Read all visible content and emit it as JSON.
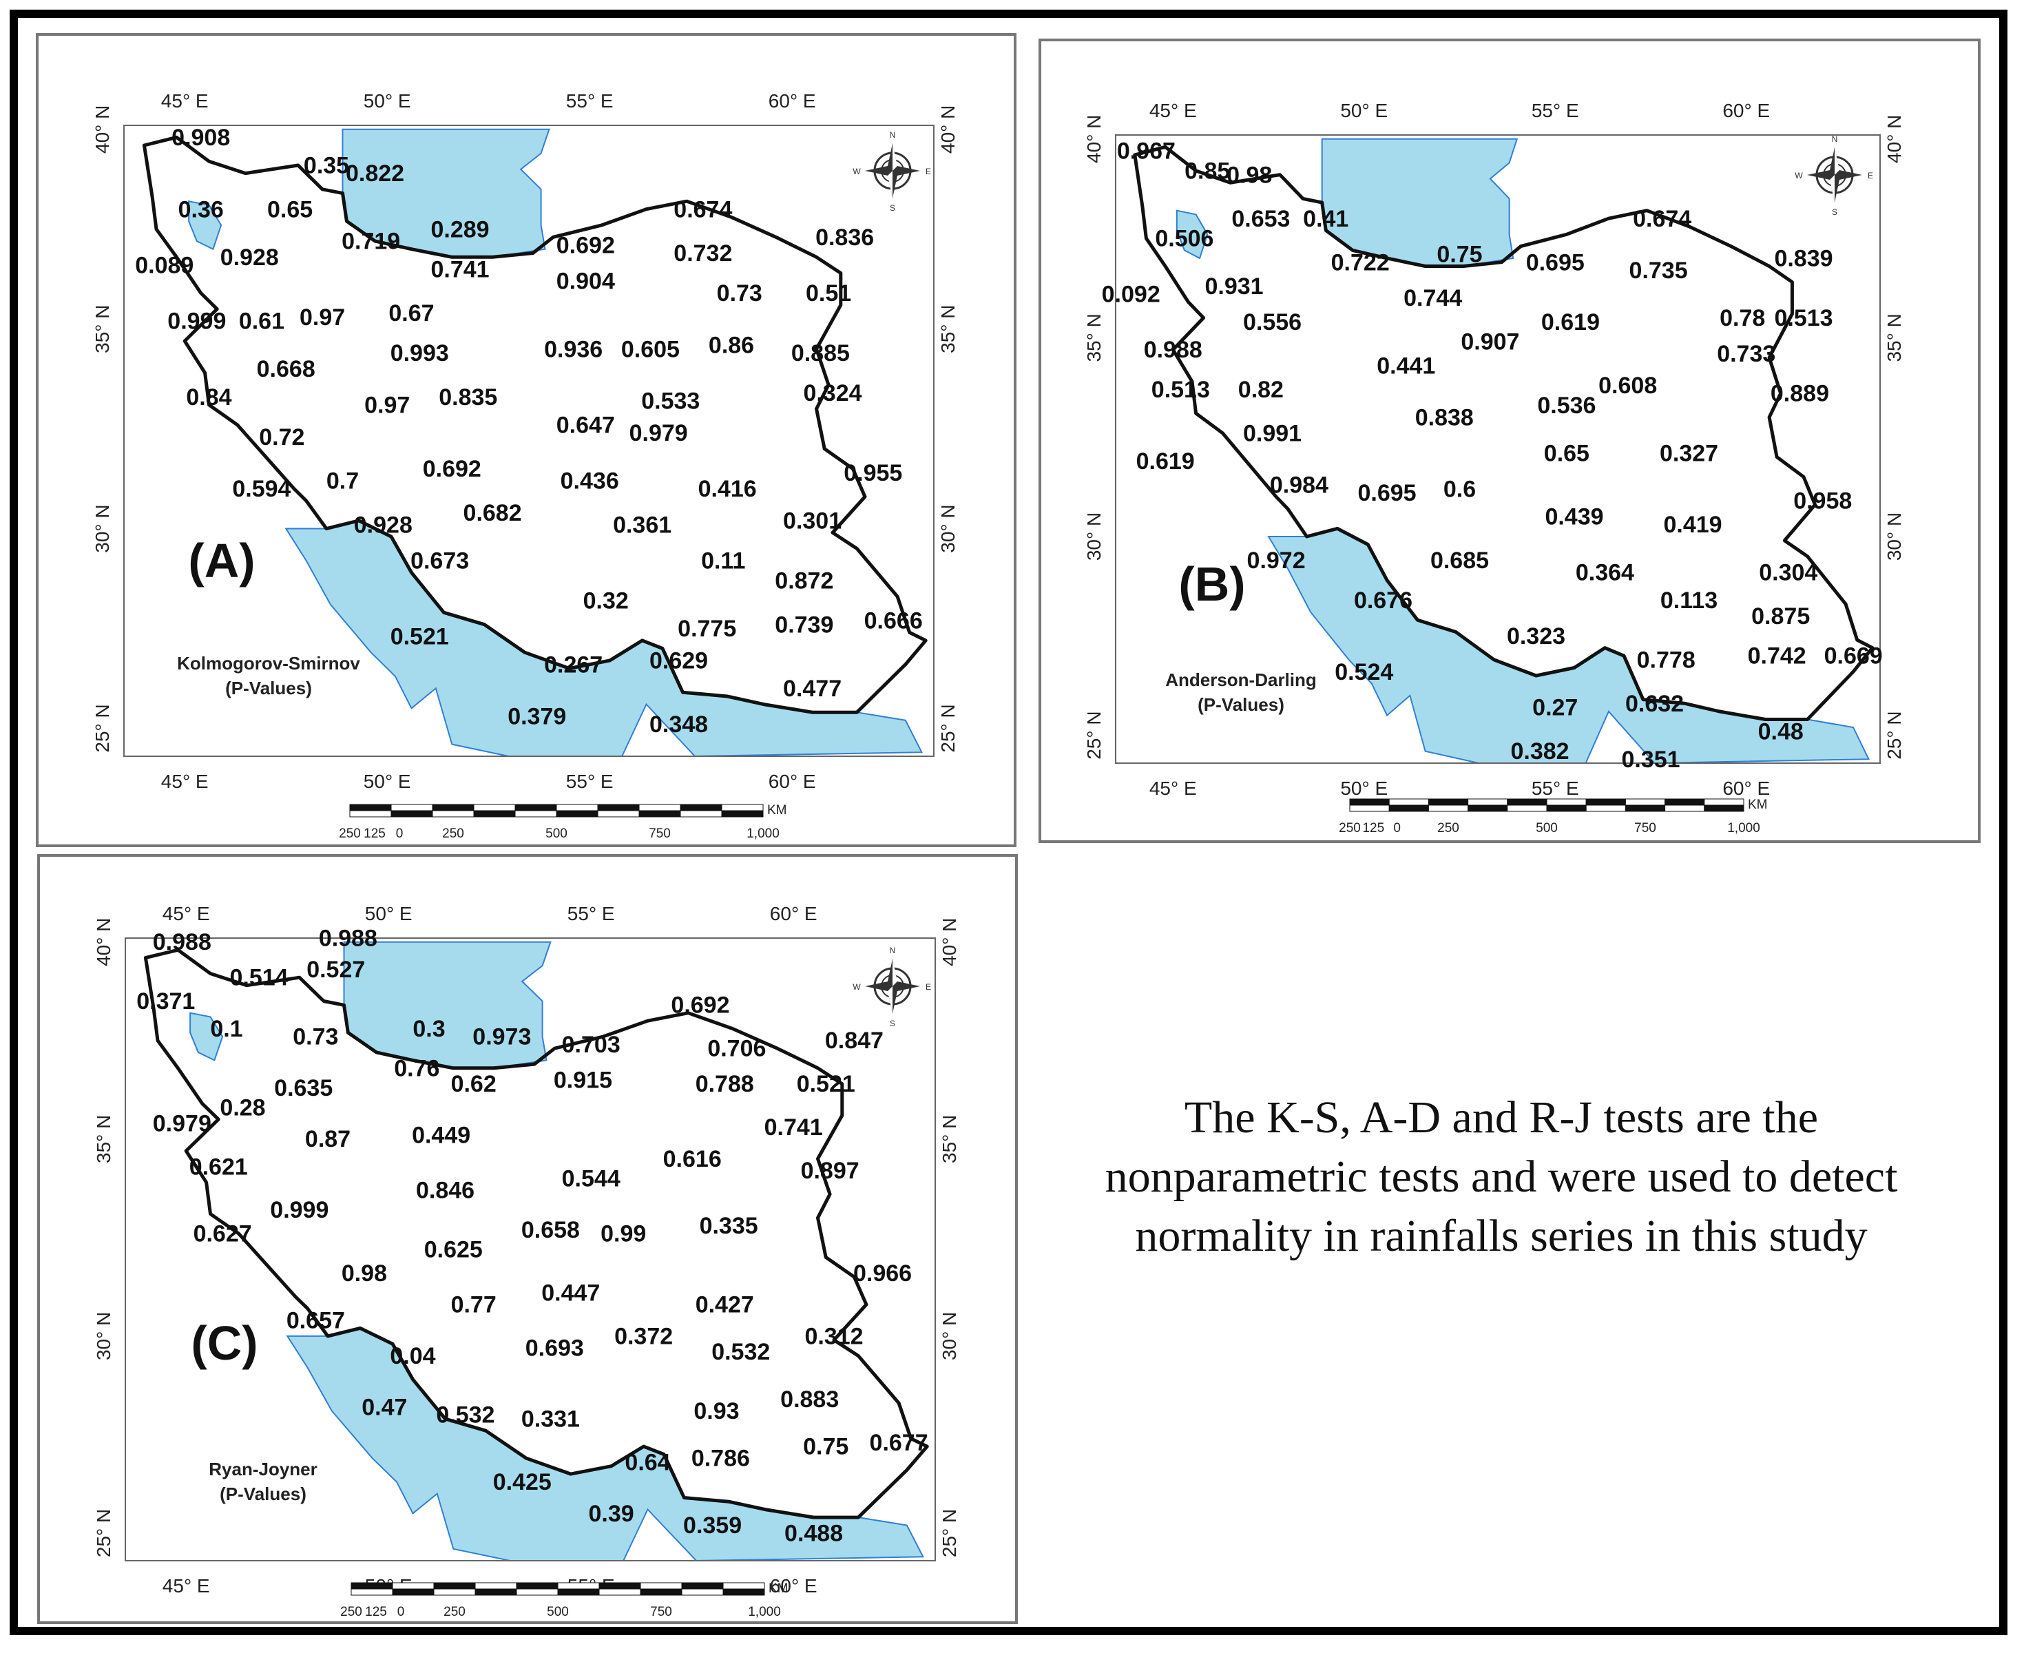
{
  "panels": [
    {
      "id": "A",
      "label": "(A)",
      "test_name": "Kolmogorov-Smirnov",
      "subtitle": "(P-Values)",
      "values": [
        {
          "v": "0.908",
          "lon": 45.4,
          "lat": 39.6
        },
        {
          "v": "0.35",
          "lon": 48.5,
          "lat": 38.9
        },
        {
          "v": "0.822",
          "lon": 49.7,
          "lat": 38.7
        },
        {
          "v": "0.36",
          "lon": 45.4,
          "lat": 37.8
        },
        {
          "v": "0.65",
          "lon": 47.6,
          "lat": 37.8
        },
        {
          "v": "0.289",
          "lon": 51.8,
          "lat": 37.3
        },
        {
          "v": "0.674",
          "lon": 57.8,
          "lat": 37.8
        },
        {
          "v": "0.719",
          "lon": 49.6,
          "lat": 37.0
        },
        {
          "v": "0.692",
          "lon": 54.9,
          "lat": 36.9
        },
        {
          "v": "0.732",
          "lon": 57.8,
          "lat": 36.7
        },
        {
          "v": "0.836",
          "lon": 61.3,
          "lat": 37.1
        },
        {
          "v": "0.089",
          "lon": 44.5,
          "lat": 36.4
        },
        {
          "v": "0.928",
          "lon": 46.6,
          "lat": 36.6
        },
        {
          "v": "0.741",
          "lon": 51.8,
          "lat": 36.3
        },
        {
          "v": "0.904",
          "lon": 54.9,
          "lat": 36.0
        },
        {
          "v": "0.73",
          "lon": 58.7,
          "lat": 35.7
        },
        {
          "v": "0.51",
          "lon": 60.9,
          "lat": 35.7
        },
        {
          "v": "0.999",
          "lon": 45.3,
          "lat": 35.0
        },
        {
          "v": "0.61",
          "lon": 46.9,
          "lat": 35.0
        },
        {
          "v": "0.97",
          "lon": 48.4,
          "lat": 35.1
        },
        {
          "v": "0.67",
          "lon": 50.6,
          "lat": 35.2
        },
        {
          "v": "0.936",
          "lon": 54.6,
          "lat": 34.3
        },
        {
          "v": "0.605",
          "lon": 56.5,
          "lat": 34.3
        },
        {
          "v": "0.86",
          "lon": 58.5,
          "lat": 34.4
        },
        {
          "v": "0.885",
          "lon": 60.7,
          "lat": 34.2
        },
        {
          "v": "0.668",
          "lon": 47.5,
          "lat": 33.8
        },
        {
          "v": "0.993",
          "lon": 50.8,
          "lat": 34.2
        },
        {
          "v": "0.84",
          "lon": 45.6,
          "lat": 33.1
        },
        {
          "v": "0.97",
          "lon": 50.0,
          "lat": 32.9
        },
        {
          "v": "0.835",
          "lon": 52.0,
          "lat": 33.1
        },
        {
          "v": "0.533",
          "lon": 57.0,
          "lat": 33.0
        },
        {
          "v": "0.324",
          "lon": 61.0,
          "lat": 33.2
        },
        {
          "v": "0.72",
          "lon": 47.4,
          "lat": 32.1
        },
        {
          "v": "0.647",
          "lon": 54.9,
          "lat": 32.4
        },
        {
          "v": "0.979",
          "lon": 56.7,
          "lat": 32.2
        },
        {
          "v": "0.955",
          "lon": 62.0,
          "lat": 31.2
        },
        {
          "v": "0.594",
          "lon": 46.9,
          "lat": 30.8
        },
        {
          "v": "0.7",
          "lon": 48.9,
          "lat": 31.0
        },
        {
          "v": "0.692",
          "lon": 51.6,
          "lat": 31.3
        },
        {
          "v": "0.436",
          "lon": 55.0,
          "lat": 31.0
        },
        {
          "v": "0.416",
          "lon": 58.4,
          "lat": 30.8
        },
        {
          "v": "0.928",
          "lon": 49.9,
          "lat": 29.9
        },
        {
          "v": "0.682",
          "lon": 52.6,
          "lat": 30.2
        },
        {
          "v": "0.361",
          "lon": 56.3,
          "lat": 29.9
        },
        {
          "v": "0.301",
          "lon": 60.5,
          "lat": 30.0
        },
        {
          "v": "0.673",
          "lon": 51.3,
          "lat": 29.0
        },
        {
          "v": "0.11",
          "lon": 58.3,
          "lat": 29.0
        },
        {
          "v": "0.872",
          "lon": 60.3,
          "lat": 28.5
        },
        {
          "v": "0.32",
          "lon": 55.4,
          "lat": 28.0
        },
        {
          "v": "0.775",
          "lon": 57.9,
          "lat": 27.3
        },
        {
          "v": "0.739",
          "lon": 60.3,
          "lat": 27.4
        },
        {
          "v": "0.666",
          "lon": 62.5,
          "lat": 27.5
        },
        {
          "v": "0.521",
          "lon": 50.8,
          "lat": 27.1
        },
        {
          "v": "0.267",
          "lon": 54.6,
          "lat": 26.4
        },
        {
          "v": "0.629",
          "lon": 57.2,
          "lat": 26.5
        },
        {
          "v": "0.477",
          "lon": 60.5,
          "lat": 25.8
        },
        {
          "v": "0.379",
          "lon": 53.7,
          "lat": 25.1
        },
        {
          "v": "0.348",
          "lon": 57.2,
          "lat": 24.9
        }
      ]
    },
    {
      "id": "B",
      "label": "(B)",
      "test_name": "Anderson-Darling",
      "subtitle": "(P-Values)",
      "values": [
        {
          "v": "0.967",
          "lon": 44.3,
          "lat": 39.5
        },
        {
          "v": "0.85",
          "lon": 45.9,
          "lat": 39.0
        },
        {
          "v": "0.98",
          "lon": 47.0,
          "lat": 38.9
        },
        {
          "v": "0.506",
          "lon": 45.3,
          "lat": 37.3
        },
        {
          "v": "0.653",
          "lon": 47.3,
          "lat": 37.8
        },
        {
          "v": "0.41",
          "lon": 49.0,
          "lat": 37.8
        },
        {
          "v": "0.75",
          "lon": 52.5,
          "lat": 36.9
        },
        {
          "v": "0.674",
          "lon": 57.8,
          "lat": 37.8
        },
        {
          "v": "0.722",
          "lon": 49.9,
          "lat": 36.7
        },
        {
          "v": "0.695",
          "lon": 55.0,
          "lat": 36.7
        },
        {
          "v": "0.735",
          "lon": 57.7,
          "lat": 36.5
        },
        {
          "v": "0.839",
          "lon": 61.5,
          "lat": 36.8
        },
        {
          "v": "0.092",
          "lon": 43.9,
          "lat": 35.9
        },
        {
          "v": "0.931",
          "lon": 46.6,
          "lat": 36.1
        },
        {
          "v": "0.744",
          "lon": 51.8,
          "lat": 35.8
        },
        {
          "v": "0.619",
          "lon": 55.4,
          "lat": 35.2
        },
        {
          "v": "0.78",
          "lon": 59.9,
          "lat": 35.3
        },
        {
          "v": "0.513",
          "lon": 61.5,
          "lat": 35.3
        },
        {
          "v": "0.556",
          "lon": 47.6,
          "lat": 35.2
        },
        {
          "v": "0.907",
          "lon": 53.3,
          "lat": 34.7
        },
        {
          "v": "0.733",
          "lon": 60.0,
          "lat": 34.4
        },
        {
          "v": "0.988",
          "lon": 45.0,
          "lat": 34.5
        },
        {
          "v": "0.441",
          "lon": 51.1,
          "lat": 34.1
        },
        {
          "v": "0.608",
          "lon": 56.9,
          "lat": 33.6
        },
        {
          "v": "0.889",
          "lon": 61.4,
          "lat": 33.4
        },
        {
          "v": "0.513",
          "lon": 45.2,
          "lat": 33.5
        },
        {
          "v": "0.82",
          "lon": 47.3,
          "lat": 33.5
        },
        {
          "v": "0.536",
          "lon": 55.3,
          "lat": 33.1
        },
        {
          "v": "0.838",
          "lon": 52.1,
          "lat": 32.8
        },
        {
          "v": "0.991",
          "lon": 47.6,
          "lat": 32.4
        },
        {
          "v": "0.65",
          "lon": 55.3,
          "lat": 31.9
        },
        {
          "v": "0.327",
          "lon": 58.5,
          "lat": 31.9
        },
        {
          "v": "0.619",
          "lon": 44.8,
          "lat": 31.7
        },
        {
          "v": "0.984",
          "lon": 48.3,
          "lat": 31.1
        },
        {
          "v": "0.695",
          "lon": 50.6,
          "lat": 30.9
        },
        {
          "v": "0.6",
          "lon": 52.5,
          "lat": 31.0
        },
        {
          "v": "0.958",
          "lon": 62.0,
          "lat": 30.7
        },
        {
          "v": "0.439",
          "lon": 55.5,
          "lat": 30.3
        },
        {
          "v": "0.419",
          "lon": 58.6,
          "lat": 30.1
        },
        {
          "v": "0.972",
          "lon": 47.7,
          "lat": 29.2
        },
        {
          "v": "0.685",
          "lon": 52.5,
          "lat": 29.2
        },
        {
          "v": "0.364",
          "lon": 56.3,
          "lat": 28.9
        },
        {
          "v": "0.304",
          "lon": 61.1,
          "lat": 28.9
        },
        {
          "v": "0.676",
          "lon": 50.5,
          "lat": 28.2
        },
        {
          "v": "0.113",
          "lon": 58.5,
          "lat": 28.2
        },
        {
          "v": "0.875",
          "lon": 60.9,
          "lat": 27.8
        },
        {
          "v": "0.323",
          "lon": 54.5,
          "lat": 27.3
        },
        {
          "v": "0.778",
          "lon": 57.9,
          "lat": 26.7
        },
        {
          "v": "0.742",
          "lon": 60.8,
          "lat": 26.8
        },
        {
          "v": "0.669",
          "lon": 62.8,
          "lat": 26.8
        },
        {
          "v": "0.524",
          "lon": 50.0,
          "lat": 26.4
        },
        {
          "v": "0.27",
          "lon": 55.0,
          "lat": 25.5
        },
        {
          "v": "0.632",
          "lon": 57.6,
          "lat": 25.6
        },
        {
          "v": "0.48",
          "lon": 60.9,
          "lat": 24.9
        },
        {
          "v": "0.382",
          "lon": 54.6,
          "lat": 24.4
        },
        {
          "v": "0.351",
          "lon": 57.5,
          "lat": 24.2
        }
      ]
    },
    {
      "id": "C",
      "label": "(C)",
      "test_name": "Ryan-Joyner",
      "subtitle": "(P-Values)",
      "values": [
        {
          "v": "0.988",
          "lon": 44.9,
          "lat": 39.8
        },
        {
          "v": "0.988",
          "lon": 49.0,
          "lat": 39.9
        },
        {
          "v": "0.514",
          "lon": 46.8,
          "lat": 38.9
        },
        {
          "v": "0.527",
          "lon": 48.7,
          "lat": 39.1
        },
        {
          "v": "0.371",
          "lon": 44.5,
          "lat": 38.3
        },
        {
          "v": "0.1",
          "lon": 46.0,
          "lat": 37.6
        },
        {
          "v": "0.73",
          "lon": 48.2,
          "lat": 37.4
        },
        {
          "v": "0.3",
          "lon": 51.0,
          "lat": 37.6
        },
        {
          "v": "0.973",
          "lon": 52.8,
          "lat": 37.4
        },
        {
          "v": "0.703",
          "lon": 55.0,
          "lat": 37.2
        },
        {
          "v": "0.692",
          "lon": 57.7,
          "lat": 38.2
        },
        {
          "v": "0.706",
          "lon": 58.6,
          "lat": 37.1
        },
        {
          "v": "0.847",
          "lon": 61.5,
          "lat": 37.3
        },
        {
          "v": "0.635",
          "lon": 47.9,
          "lat": 36.1
        },
        {
          "v": "0.76",
          "lon": 50.7,
          "lat": 36.6
        },
        {
          "v": "0.62",
          "lon": 52.1,
          "lat": 36.2
        },
        {
          "v": "0.915",
          "lon": 54.8,
          "lat": 36.3
        },
        {
          "v": "0.788",
          "lon": 58.3,
          "lat": 36.2
        },
        {
          "v": "0.521",
          "lon": 60.8,
          "lat": 36.2
        },
        {
          "v": "0.28",
          "lon": 46.4,
          "lat": 35.6
        },
        {
          "v": "0.979",
          "lon": 44.9,
          "lat": 35.2
        },
        {
          "v": "0.741",
          "lon": 60.0,
          "lat": 35.1
        },
        {
          "v": "0.87",
          "lon": 48.5,
          "lat": 34.8
        },
        {
          "v": "0.449",
          "lon": 51.3,
          "lat": 34.9
        },
        {
          "v": "0.616",
          "lon": 57.5,
          "lat": 34.3
        },
        {
          "v": "0.897",
          "lon": 60.9,
          "lat": 34.0
        },
        {
          "v": "0.621",
          "lon": 45.8,
          "lat": 34.1
        },
        {
          "v": "0.544",
          "lon": 55.0,
          "lat": 33.8
        },
        {
          "v": "0.846",
          "lon": 51.4,
          "lat": 33.5
        },
        {
          "v": "0.999",
          "lon": 47.8,
          "lat": 33.0
        },
        {
          "v": "0.658",
          "lon": 54.0,
          "lat": 32.5
        },
        {
          "v": "0.99",
          "lon": 55.8,
          "lat": 32.4
        },
        {
          "v": "0.335",
          "lon": 58.4,
          "lat": 32.6
        },
        {
          "v": "0.627",
          "lon": 45.9,
          "lat": 32.4
        },
        {
          "v": "0.625",
          "lon": 51.6,
          "lat": 32.0
        },
        {
          "v": "0.966",
          "lon": 62.2,
          "lat": 31.4
        },
        {
          "v": "0.98",
          "lon": 49.4,
          "lat": 31.4
        },
        {
          "v": "0.77",
          "lon": 52.1,
          "lat": 30.6
        },
        {
          "v": "0.447",
          "lon": 54.5,
          "lat": 30.9
        },
        {
          "v": "0.427",
          "lon": 58.3,
          "lat": 30.6
        },
        {
          "v": "0.657",
          "lon": 48.2,
          "lat": 30.2
        },
        {
          "v": "0.312",
          "lon": 61.0,
          "lat": 29.8
        },
        {
          "v": "0.04",
          "lon": 50.6,
          "lat": 29.3
        },
        {
          "v": "0.693",
          "lon": 54.1,
          "lat": 29.5
        },
        {
          "v": "0.372",
          "lon": 56.3,
          "lat": 29.8
        },
        {
          "v": "0.532",
          "lon": 58.7,
          "lat": 29.4
        },
        {
          "v": "0.883",
          "lon": 60.4,
          "lat": 28.2
        },
        {
          "v": "0.47",
          "lon": 49.9,
          "lat": 28.0
        },
        {
          "v": "0.532",
          "lon": 51.9,
          "lat": 27.8
        },
        {
          "v": "0.331",
          "lon": 54.0,
          "lat": 27.7
        },
        {
          "v": "0.93",
          "lon": 58.1,
          "lat": 27.9
        },
        {
          "v": "0.75",
          "lon": 60.8,
          "lat": 27.0
        },
        {
          "v": "0.677",
          "lon": 62.6,
          "lat": 27.1
        },
        {
          "v": "0.64",
          "lon": 56.4,
          "lat": 26.6
        },
        {
          "v": "0.786",
          "lon": 58.2,
          "lat": 26.7
        },
        {
          "v": "0.425",
          "lon": 53.3,
          "lat": 26.1
        },
        {
          "v": "0.39",
          "lon": 55.5,
          "lat": 25.3
        },
        {
          "v": "0.359",
          "lon": 58.0,
          "lat": 25.0
        },
        {
          "v": "0.488",
          "lon": 60.5,
          "lat": 24.8
        }
      ]
    }
  ],
  "axes": {
    "lon_ticks": [
      "45° E",
      "50° E",
      "55° E",
      "60° E"
    ],
    "lat_ticks": [
      "40° N",
      "35° N",
      "30° N",
      "25° N"
    ],
    "lon_values": [
      45,
      50,
      55,
      60
    ],
    "lat_values": [
      40,
      35,
      30,
      25
    ]
  },
  "scale_bar": {
    "labels": [
      "250",
      "125",
      "0",
      "250",
      "500",
      "750",
      "1,000"
    ],
    "unit": "KM"
  },
  "compass": {
    "icon": "compass-rose-icon",
    "letters": [
      "N",
      "E",
      "S",
      "W"
    ]
  },
  "colors": {
    "water": "#a6dbee",
    "water_edge": "#2f7fd6",
    "border": "#111111"
  },
  "note": "The K-S, A-D and R-J tests are the nonparametric tests and were used to detect normality in rainfalls series in this study"
}
